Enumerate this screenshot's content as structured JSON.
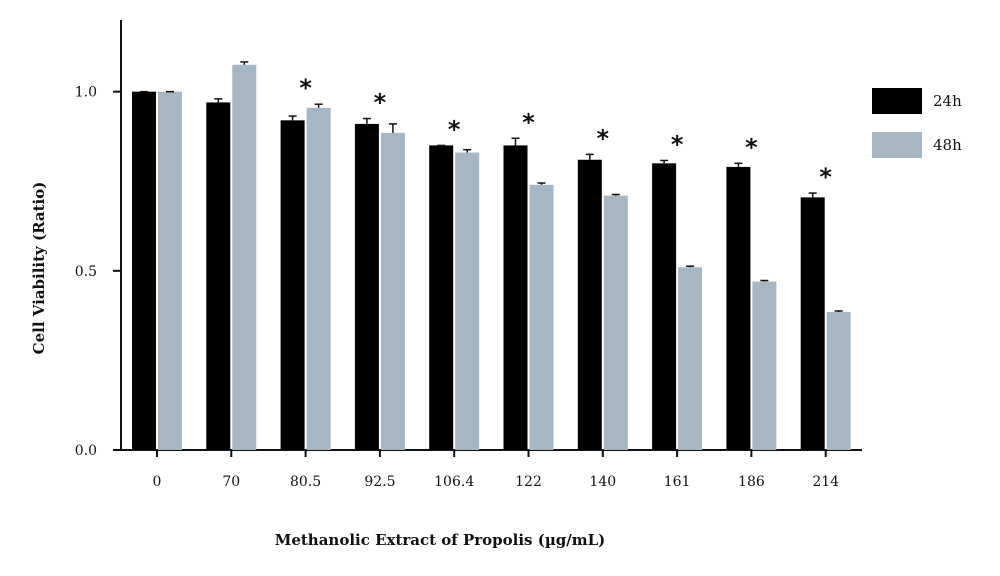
{
  "chart_data": {
    "type": "bar",
    "title": "",
    "xlabel": "Methanolic Extract of Propolis (µg/mL)",
    "ylabel": "Cell Viability (Ratio)",
    "ylim": [
      0,
      1.2
    ],
    "yticks": [
      "0.0",
      "0.5",
      "1.0"
    ],
    "categories": [
      "0",
      "70",
      "80.5",
      "92.5",
      "106.4",
      "122",
      "140",
      "161",
      "186",
      "214"
    ],
    "series": [
      {
        "name": "24h",
        "color": "#000000",
        "values": [
          1.0,
          0.97,
          0.92,
          0.91,
          0.85,
          0.85,
          0.81,
          0.8,
          0.79,
          0.705
        ],
        "errors": [
          0.0,
          0.01,
          0.012,
          0.015,
          0.0,
          0.02,
          0.015,
          0.008,
          0.01,
          0.012
        ]
      },
      {
        "name": "48h",
        "color": "#a6b7c3",
        "values": [
          1.0,
          1.075,
          0.955,
          0.885,
          0.83,
          0.74,
          0.71,
          0.51,
          0.47,
          0.385
        ],
        "errors": [
          0.0,
          0.008,
          0.01,
          0.025,
          0.008,
          0.005,
          0.003,
          0.003,
          0.003,
          0.003
        ]
      }
    ],
    "significance_marker": "*",
    "significant_categories": [
      "80.5",
      "92.5",
      "106.4",
      "122",
      "140",
      "161",
      "186",
      "214"
    ],
    "legend_placement": "right",
    "grid": false
  }
}
